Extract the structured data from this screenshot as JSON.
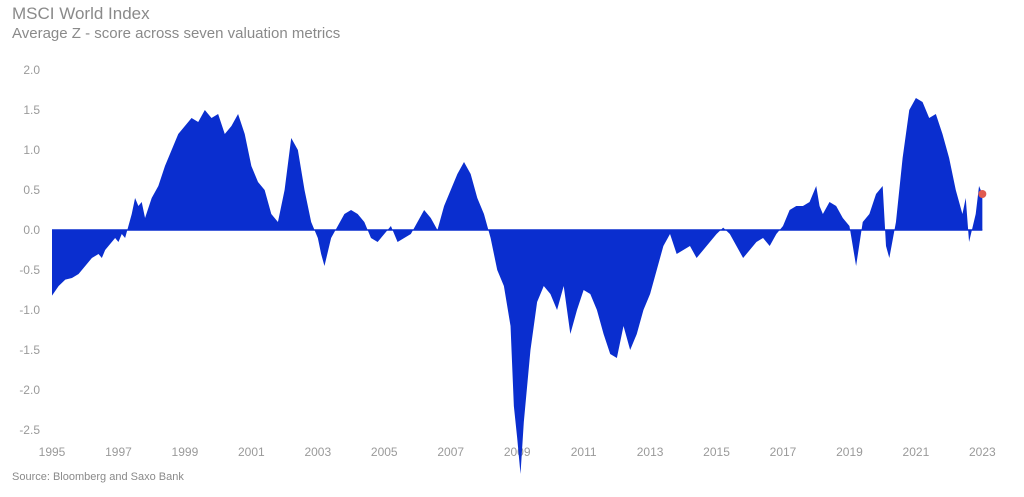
{
  "chart_data": {
    "type": "area",
    "title": "MSCI World Index",
    "subtitle": "Average Z - score across seven valuation metrics",
    "source": "Source: Bloomberg and Saxo Bank",
    "xlabel": "",
    "ylabel": "",
    "ylim": [
      -2.5,
      2.0
    ],
    "xlim": [
      1995,
      2023.2
    ],
    "yticks": [
      "2.0",
      "1.5",
      "1.0",
      "0.5",
      "0.0",
      "-0.5",
      "-1.0",
      "-1.5",
      "-2.0",
      "-2.5"
    ],
    "xticks": [
      "1995",
      "1997",
      "1999",
      "2001",
      "2003",
      "2005",
      "2007",
      "2009",
      "2011",
      "2013",
      "2015",
      "2017",
      "2019",
      "2021",
      "2023"
    ],
    "fill_color": "#0a2ecf",
    "marker_color": "#e05a4f",
    "grid": false,
    "legend": "none",
    "series": [
      {
        "x": [
          1995.0,
          1995.2,
          1995.4,
          1995.6,
          1995.8,
          1996.0,
          1996.2,
          1996.4,
          1996.5,
          1996.6,
          1996.7,
          1996.8,
          1996.9,
          1997.0,
          1997.1,
          1997.2,
          1997.3,
          1997.4,
          1997.5,
          1997.6,
          1997.7,
          1997.8,
          1998.0,
          1998.2,
          1998.4,
          1998.6,
          1998.8,
          1999.0,
          1999.2,
          1999.4,
          1999.6,
          1999.8,
          2000.0,
          2000.2,
          2000.4,
          2000.6,
          2000.8,
          2001.0,
          2001.2,
          2001.4,
          2001.6,
          2001.8,
          2002.0,
          2002.2,
          2002.4,
          2002.6,
          2002.8,
          2003.0,
          2003.1,
          2003.2,
          2003.4,
          2003.6,
          2003.8,
          2004.0,
          2004.2,
          2004.4,
          2004.6,
          2004.8,
          2005.0,
          2005.2,
          2005.4,
          2005.6,
          2005.8,
          2006.0,
          2006.2,
          2006.4,
          2006.6,
          2006.8,
          2007.0,
          2007.2,
          2007.4,
          2007.6,
          2007.8,
          2008.0,
          2008.2,
          2008.4,
          2008.6,
          2008.8,
          2008.9,
          2009.0,
          2009.1,
          2009.2,
          2009.4,
          2009.6,
          2009.8,
          2010.0,
          2010.2,
          2010.4,
          2010.6,
          2010.8,
          2011.0,
          2011.2,
          2011.4,
          2011.6,
          2011.8,
          2012.0,
          2012.2,
          2012.4,
          2012.6,
          2012.8,
          2013.0,
          2013.2,
          2013.4,
          2013.6,
          2013.8,
          2014.0,
          2014.2,
          2014.4,
          2014.6,
          2014.8,
          2015.0,
          2015.2,
          2015.4,
          2015.6,
          2015.8,
          2016.0,
          2016.2,
          2016.4,
          2016.6,
          2016.8,
          2017.0,
          2017.2,
          2017.4,
          2017.6,
          2017.8,
          2018.0,
          2018.1,
          2018.2,
          2018.4,
          2018.6,
          2018.8,
          2019.0,
          2019.2,
          2019.4,
          2019.6,
          2019.8,
          2020.0,
          2020.1,
          2020.2,
          2020.4,
          2020.6,
          2020.8,
          2021.0,
          2021.2,
          2021.4,
          2021.6,
          2021.8,
          2022.0,
          2022.2,
          2022.4,
          2022.5,
          2022.6,
          2022.8,
          2022.9,
          2023.0
        ],
        "y": [
          -0.82,
          -0.7,
          -0.62,
          -0.6,
          -0.55,
          -0.45,
          -0.35,
          -0.3,
          -0.35,
          -0.25,
          -0.2,
          -0.15,
          -0.1,
          -0.15,
          -0.05,
          -0.1,
          0.05,
          0.2,
          0.4,
          0.3,
          0.35,
          0.15,
          0.4,
          0.55,
          0.8,
          1.0,
          1.2,
          1.3,
          1.4,
          1.35,
          1.5,
          1.4,
          1.45,
          1.2,
          1.3,
          1.45,
          1.2,
          0.8,
          0.6,
          0.5,
          0.2,
          0.1,
          0.5,
          1.15,
          1.0,
          0.5,
          0.1,
          -0.1,
          -0.3,
          -0.45,
          -0.1,
          0.05,
          0.2,
          0.25,
          0.2,
          0.1,
          -0.1,
          -0.15,
          -0.05,
          0.05,
          -0.15,
          -0.1,
          -0.05,
          0.1,
          0.25,
          0.15,
          0.0,
          0.3,
          0.5,
          0.7,
          0.85,
          0.7,
          0.4,
          0.2,
          -0.1,
          -0.5,
          -0.7,
          -1.2,
          -2.2,
          -2.6,
          -3.05,
          -2.4,
          -1.5,
          -0.9,
          -0.7,
          -0.8,
          -1.0,
          -0.7,
          -1.3,
          -1.0,
          -0.75,
          -0.8,
          -1.0,
          -1.3,
          -1.55,
          -1.6,
          -1.2,
          -1.5,
          -1.3,
          -1.0,
          -0.8,
          -0.5,
          -0.2,
          -0.05,
          -0.3,
          -0.25,
          -0.2,
          -0.35,
          -0.25,
          -0.15,
          -0.05,
          0.03,
          -0.05,
          -0.2,
          -0.35,
          -0.25,
          -0.15,
          -0.1,
          -0.2,
          -0.05,
          0.05,
          0.25,
          0.3,
          0.3,
          0.35,
          0.55,
          0.3,
          0.2,
          0.35,
          0.3,
          0.15,
          0.05,
          -0.45,
          0.1,
          0.2,
          0.45,
          0.55,
          -0.2,
          -0.35,
          0.1,
          0.9,
          1.5,
          1.65,
          1.6,
          1.4,
          1.45,
          1.2,
          0.9,
          0.5,
          0.2,
          0.4,
          -0.15,
          0.2,
          0.55,
          0.45
        ]
      }
    ],
    "last_point": {
      "x": 2023.0,
      "y": 0.45
    }
  }
}
